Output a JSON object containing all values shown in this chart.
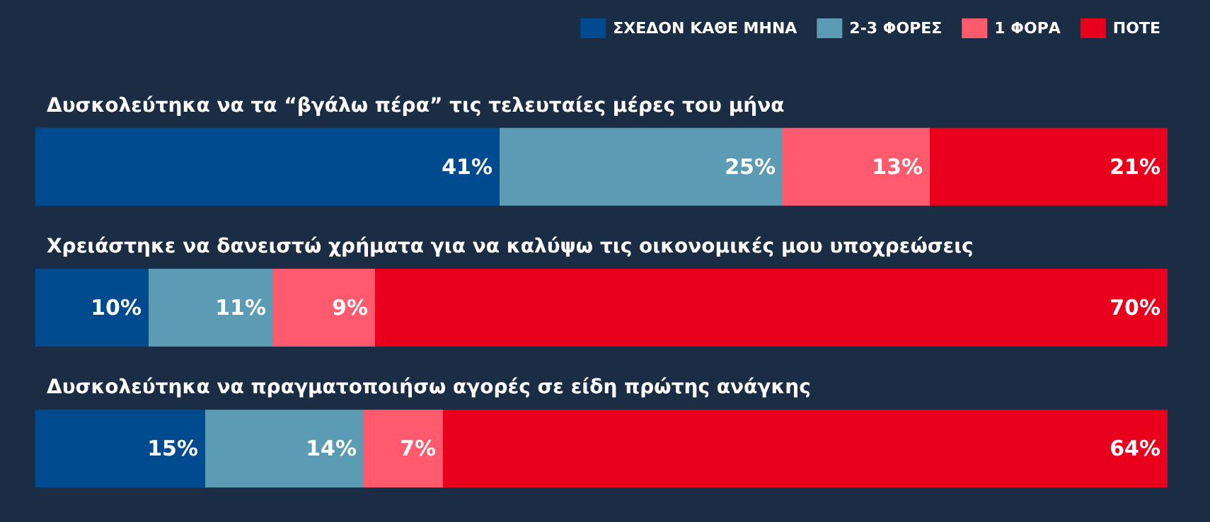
{
  "chart_data": {
    "type": "bar",
    "orientation": "horizontal",
    "stacked": true,
    "categories": [
      "Δυσκολεύτηκα να τα “βγάλω πέρα” τις τελευταίες μέρες του μήνα",
      "Χρειάστηκε να δανειστώ χρήματα για να καλύψω τις οικονομικές μου υποχρεώσεις",
      "Δυσκολεύτηκα να πραγματοποιήσω αγορές σε είδη πρώτης ανάγκης"
    ],
    "xlim": [
      0,
      100
    ],
    "series": [
      {
        "name": "ΣΧΕΔΟΝ ΚΑΘΕ ΜΗΝΑ",
        "color": "#004a8f",
        "values": [
          41,
          10,
          15
        ],
        "value_labels": [
          "41%",
          "10%",
          "15%"
        ]
      },
      {
        "name": "2-3 ΦΟΡΕΣ",
        "color": "#5b9bb3",
        "values": [
          25,
          11,
          14
        ],
        "value_labels": [
          "25%",
          "11%",
          "14%"
        ]
      },
      {
        "name": "1 ΦΟΡΑ",
        "color": "#ff5a6e",
        "values": [
          13,
          9,
          7
        ],
        "value_labels": [
          "13%",
          "9%",
          "7%"
        ]
      },
      {
        "name": "ΠΟΤΕ",
        "color": "#e8001c",
        "values": [
          21,
          70,
          64
        ],
        "value_labels": [
          "21%",
          "70%",
          "64%"
        ]
      }
    ],
    "legend": "top right",
    "tick_labels": "y"
  }
}
